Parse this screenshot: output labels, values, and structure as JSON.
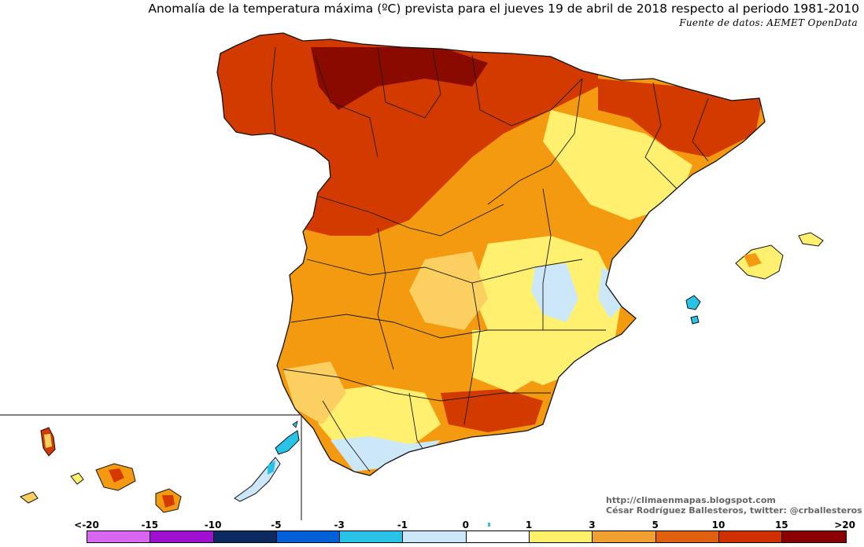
{
  "title": "Anomalía de la temperatura máxima (ºC) prevista para el jueves 19 de abril de 2018 respecto al periodo 1981-2010",
  "source": "Fuente de datos: AEMET OpenData",
  "credits": {
    "line1": "http://climaenmapas.blogspot.com",
    "line2": "César Rodríguez Ballesteros, twitter: @crballesteros"
  },
  "legend": {
    "labels": [
      "<-20",
      "-15",
      "-10",
      "-5",
      "-3",
      "-1",
      "0",
      "1",
      "3",
      "5",
      "10",
      "15",
      ">20"
    ],
    "colors": [
      "#d966f0",
      "#a010d0",
      "#0a2a60",
      "#0060d8",
      "#29c3e8",
      "#cce8f8",
      "#ffffff",
      "#fff06a",
      "#f0a030",
      "#e06010",
      "#d03000",
      "#8a0000",
      "#6a3a08"
    ]
  },
  "map_colors": {
    "neg3": "#29c3e8",
    "neg1": "#cce8f8",
    "zero": "#ffffff",
    "pos1": "#ffff80",
    "pos3": "#fbd060",
    "pos5": "#f39a10",
    "pos10": "#d23a00",
    "pos15": "#8a0a00",
    "border": "#1a1a1a"
  }
}
